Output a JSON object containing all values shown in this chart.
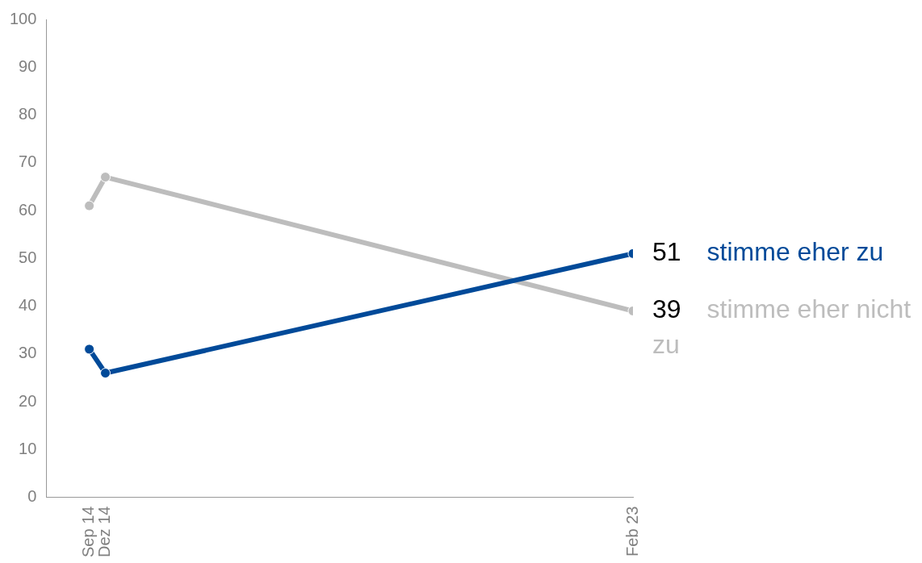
{
  "chart_data": {
    "type": "line",
    "x": [
      "2014-09",
      "2014-12",
      "2023-02"
    ],
    "series": [
      {
        "name": "stimme eher zu",
        "color": "#004a99",
        "values": [
          31,
          26,
          51
        ],
        "value_labels": [
          null,
          null,
          "51"
        ]
      },
      {
        "name": "stimme eher nicht zu",
        "color": "#bdbdbd",
        "values": [
          61,
          67,
          39
        ],
        "value_labels": [
          null,
          null,
          "39"
        ]
      }
    ],
    "xlim": [
      "2014-01",
      "2023-02"
    ],
    "xticks": [
      {
        "value": "2014-09",
        "label": "Sep 14"
      },
      {
        "value": "2014-12",
        "label": "Dez 14"
      },
      {
        "value": "2023-02",
        "label": "Feb 23"
      }
    ],
    "ylim": [
      0,
      100
    ],
    "yticks": [
      0,
      10,
      20,
      30,
      40,
      50,
      60,
      70,
      80,
      90,
      100
    ],
    "grid": false,
    "legend": false,
    "marker": "circle",
    "line_style": "solid"
  }
}
